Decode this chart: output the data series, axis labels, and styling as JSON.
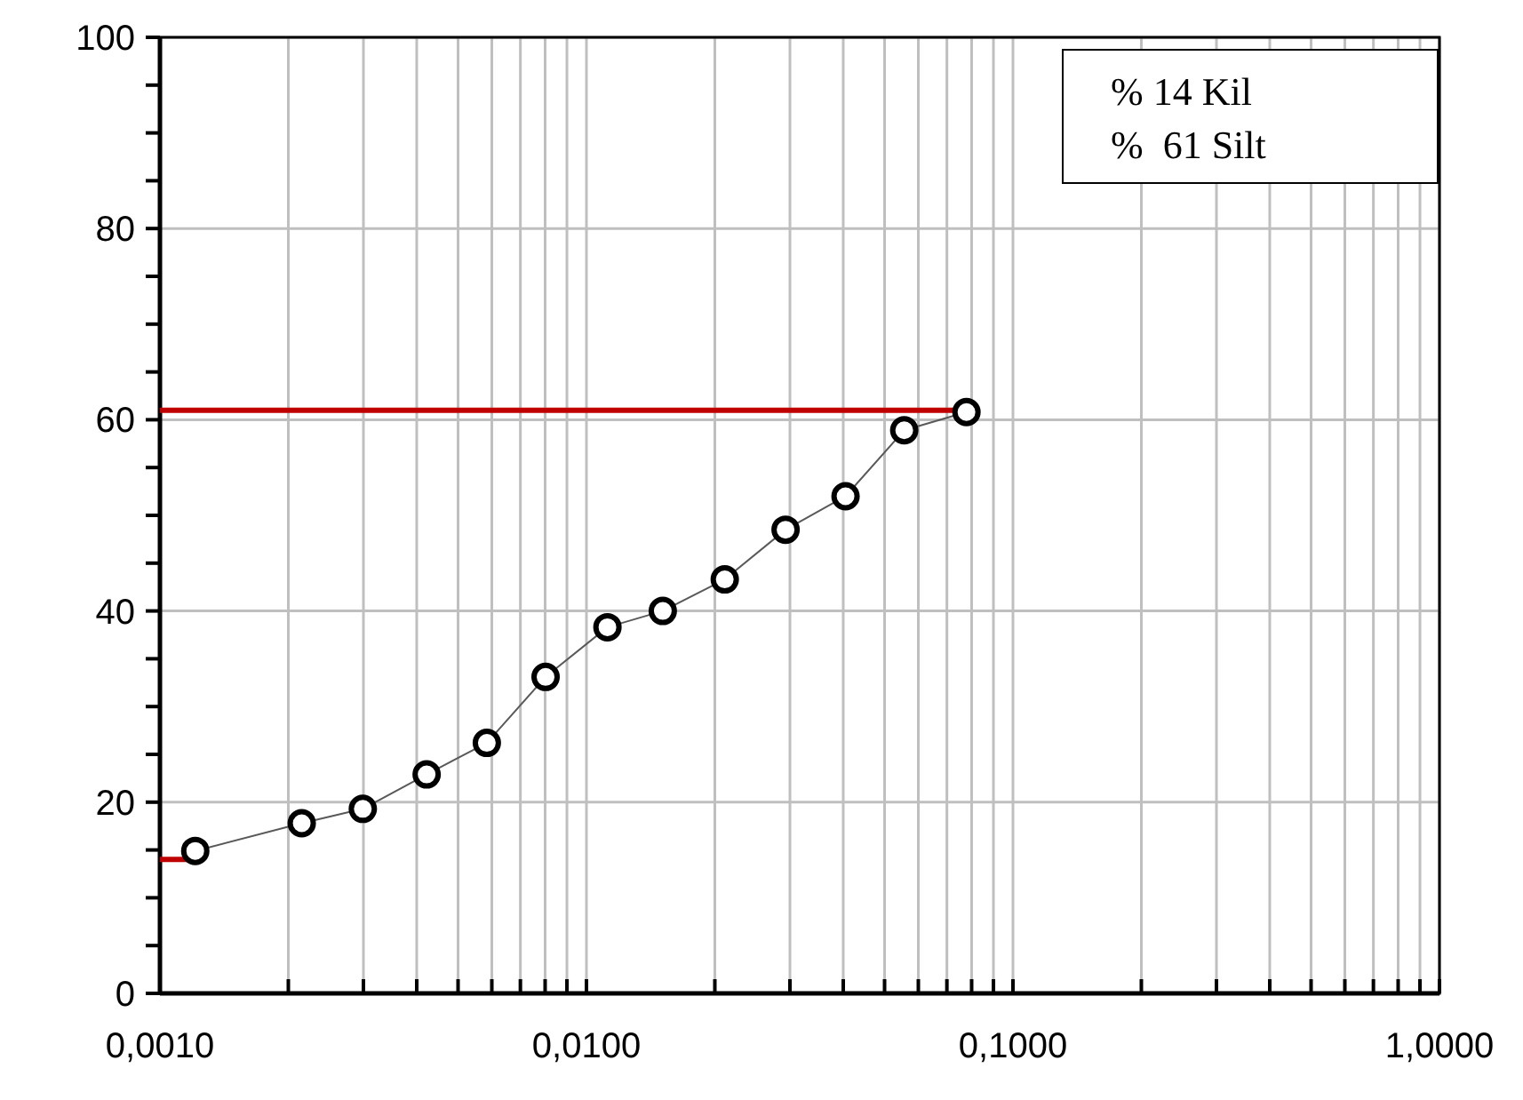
{
  "chart_data": {
    "type": "line",
    "log": "x",
    "grid": true,
    "marker": "circle",
    "xlim": [
      0.001,
      1
    ],
    "ylim": [
      0,
      100
    ],
    "xticks": [
      {
        "value": 0.001,
        "label": "0,0010"
      },
      {
        "value": 0.002,
        "label": null
      },
      {
        "value": 0.003,
        "label": null
      },
      {
        "value": 0.004,
        "label": null
      },
      {
        "value": 0.005,
        "label": null
      },
      {
        "value": 0.006,
        "label": null
      },
      {
        "value": 0.007,
        "label": null
      },
      {
        "value": 0.008,
        "label": null
      },
      {
        "value": 0.009,
        "label": null
      },
      {
        "value": 0.01,
        "label": "0,0100"
      },
      {
        "value": 0.02,
        "label": null
      },
      {
        "value": 0.03,
        "label": null
      },
      {
        "value": 0.04,
        "label": null
      },
      {
        "value": 0.05,
        "label": null
      },
      {
        "value": 0.06,
        "label": null
      },
      {
        "value": 0.07,
        "label": null
      },
      {
        "value": 0.08,
        "label": null
      },
      {
        "value": 0.09,
        "label": null
      },
      {
        "value": 0.1,
        "label": "0,1000"
      },
      {
        "value": 0.2,
        "label": null
      },
      {
        "value": 0.3,
        "label": null
      },
      {
        "value": 0.4,
        "label": null
      },
      {
        "value": 0.5,
        "label": null
      },
      {
        "value": 0.6,
        "label": null
      },
      {
        "value": 0.7,
        "label": null
      },
      {
        "value": 0.8,
        "label": null
      },
      {
        "value": 0.9,
        "label": null
      },
      {
        "value": 1,
        "label": "1,0000"
      }
    ],
    "yticks": [
      0,
      {
        "value": 5,
        "label": null
      },
      {
        "value": 10,
        "label": null
      },
      {
        "value": 15,
        "label": null
      },
      20,
      {
        "value": 25,
        "label": null
      },
      {
        "value": 30,
        "label": null
      },
      {
        "value": 35,
        "label": null
      },
      40,
      {
        "value": 45,
        "label": null
      },
      {
        "value": 50,
        "label": null
      },
      {
        "value": 55,
        "label": null
      },
      60,
      {
        "value": 65,
        "label": null
      },
      {
        "value": 70,
        "label": null
      },
      {
        "value": 75,
        "label": null
      },
      80,
      {
        "value": 85,
        "label": null
      },
      {
        "value": 90,
        "label": null
      },
      {
        "value": 95,
        "label": null
      },
      100
    ],
    "annotations": [
      "% 14 Kil",
      "%  61 Silt"
    ],
    "series": [
      {
        "color": "#000000",
        "x": [
          0.00121,
          0.00215,
          0.00299,
          0.00422,
          0.00584,
          0.00802,
          0.0112,
          0.0151,
          0.0211,
          0.0293,
          0.0405,
          0.0556,
          0.0778
        ],
        "values": [
          14.9,
          17.8,
          19.3,
          22.9,
          26.2,
          33.1,
          38.3,
          40.0,
          43.3,
          48.5,
          52.0,
          58.9,
          60.8
        ]
      },
      {
        "color": "#c00000",
        "marker": "none",
        "x": [
          0.001,
          0.0778
        ],
        "values": [
          61,
          61
        ]
      },
      {
        "color": "#c00000",
        "marker": "none",
        "x": [
          0.001,
          0.0012
        ],
        "values": [
          14,
          14
        ]
      }
    ]
  }
}
